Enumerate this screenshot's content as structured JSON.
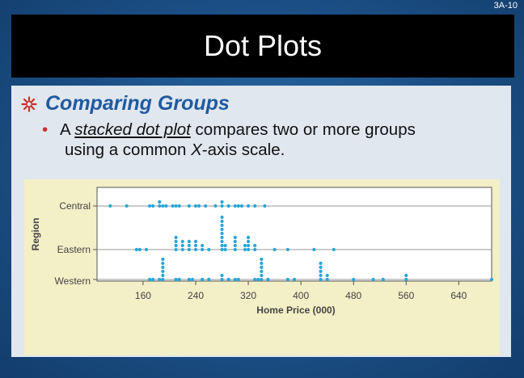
{
  "slide": {
    "number": "3A-10",
    "title": "Dot Plots",
    "heading": "Comparing Groups",
    "bullet_prefix": "A ",
    "bullet_term": "stacked dot plot",
    "bullet_mid": " compares two or more groups",
    "bullet_line2_a": "using a common ",
    "bullet_line2_x": "X",
    "bullet_line2_b": "-axis scale."
  },
  "colors": {
    "dot": "#2aa6d6",
    "accent_heading": "#1f5aa0",
    "bullet": "#c9302c",
    "chart_background": "#f3efc6"
  },
  "chart_data": {
    "type": "scatter",
    "title": "",
    "xlabel": "Home Price (000)",
    "ylabel": "Region",
    "xlim": [
      90,
      690
    ],
    "x_ticks": [
      160,
      240,
      320,
      400,
      480,
      560,
      640
    ],
    "categories": [
      "Central",
      "Eastern",
      "Western"
    ],
    "grid": true,
    "series": [
      {
        "name": "Central",
        "values": [
          110,
          135,
          170,
          175,
          185,
          185,
          190,
          195,
          205,
          210,
          215,
          230,
          240,
          245,
          255,
          270,
          280,
          280,
          290,
          300,
          305,
          310,
          320,
          330,
          345
        ]
      },
      {
        "name": "Eastern",
        "values": [
          150,
          155,
          165,
          210,
          210,
          210,
          210,
          220,
          220,
          220,
          230,
          230,
          230,
          240,
          240,
          240,
          250,
          250,
          260,
          280,
          280,
          280,
          280,
          280,
          280,
          280,
          280,
          280,
          285,
          285,
          300,
          300,
          300,
          300,
          315,
          315,
          320,
          320,
          320,
          320,
          330,
          330,
          360,
          380,
          420,
          450
        ]
      },
      {
        "name": "Western",
        "values": [
          170,
          175,
          185,
          190,
          190,
          190,
          190,
          190,
          190,
          210,
          215,
          230,
          235,
          250,
          260,
          280,
          280,
          290,
          300,
          305,
          330,
          335,
          340,
          340,
          340,
          340,
          340,
          340,
          350,
          380,
          390,
          430,
          430,
          430,
          430,
          430,
          440,
          440,
          480,
          510,
          525,
          560,
          560,
          690
        ]
      }
    ]
  }
}
